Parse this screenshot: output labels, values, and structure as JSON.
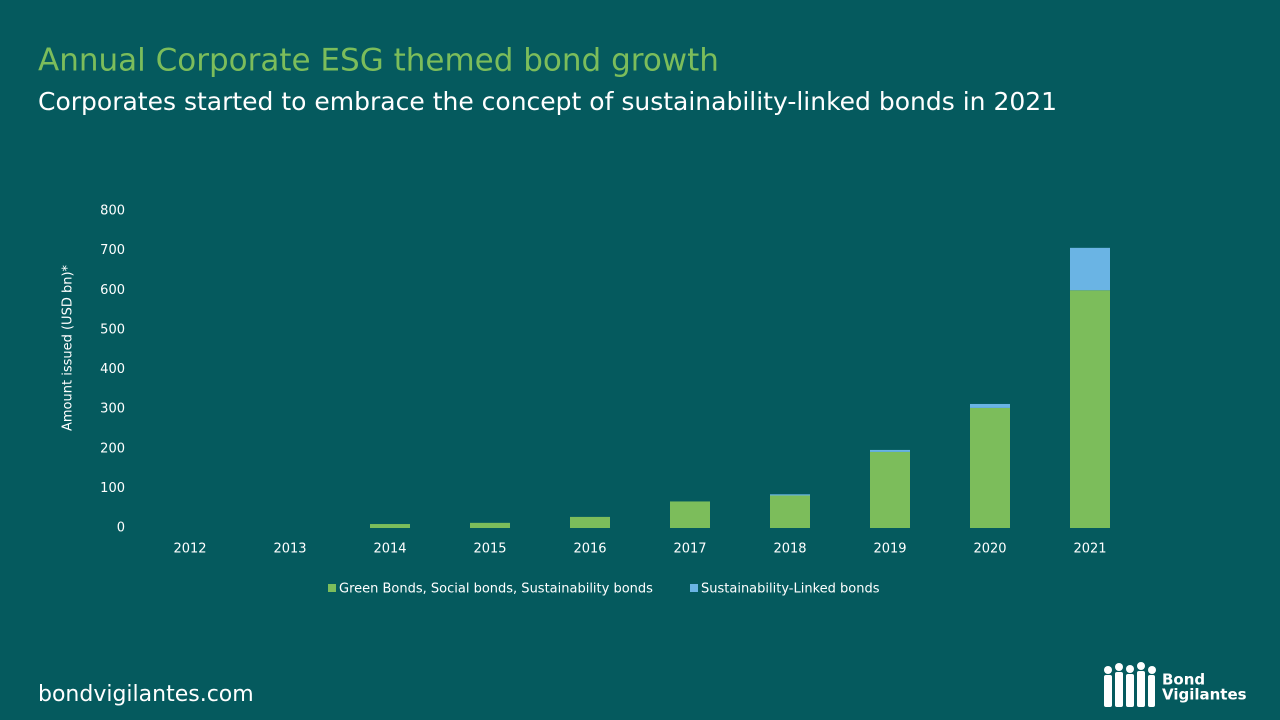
{
  "chart_data": {
    "type": "bar",
    "stacked": true,
    "title": "Annual Corporate ESG themed bond growth",
    "subtitle": "Corporates started to embrace the concept of sustainability-linked bonds in 2021",
    "y_label": "Amount issued (USD bn)*",
    "categories": [
      "2012",
      "2013",
      "2014",
      "2015",
      "2016",
      "2017",
      "2018",
      "2019",
      "2020",
      "2021"
    ],
    "series": [
      {
        "name": "Green Bonds, Social bonds, Sustainability bonds",
        "color": "#7cbd5b",
        "values": [
          0,
          0,
          10,
          13,
          28,
          67,
          82,
          192,
          303,
          600
        ]
      },
      {
        "name": "Sustainability-Linked bonds",
        "color": "#6ab4e4",
        "values": [
          0,
          0,
          0,
          0,
          0,
          0,
          3,
          5,
          10,
          107
        ]
      }
    ],
    "ylim": [
      0,
      800
    ],
    "yticks": [
      0,
      100,
      200,
      300,
      400,
      500,
      600,
      700,
      800
    ],
    "grid": false,
    "legend": "bottom"
  },
  "footer": {
    "website": "bondvigilantes.com",
    "logo": [
      "Bond",
      "Vigilantes"
    ]
  }
}
